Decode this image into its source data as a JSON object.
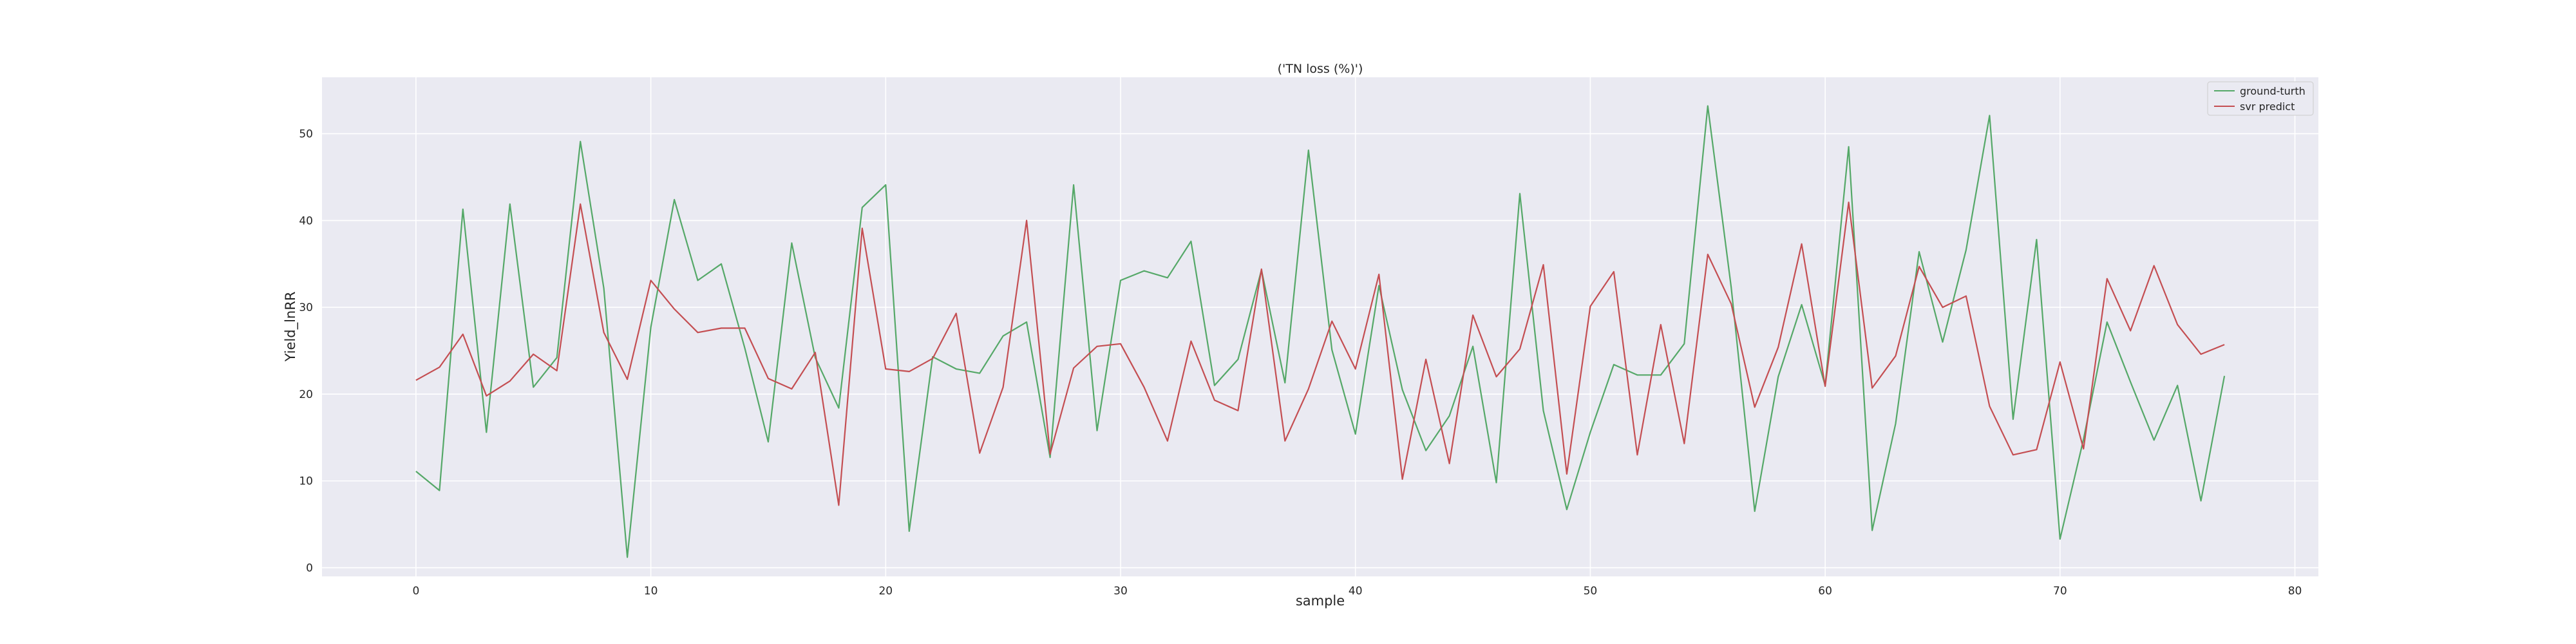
{
  "chart_data": {
    "type": "line",
    "title": "('TN loss (%)')",
    "xlabel": "sample",
    "ylabel": "Yield_lnRR",
    "xlim": [
      -4,
      81
    ],
    "ylim": [
      -1,
      56.5
    ],
    "x_ticks": [
      0,
      10,
      20,
      30,
      40,
      50,
      60,
      70,
      80
    ],
    "y_ticks": [
      0,
      10,
      20,
      30,
      40,
      50
    ],
    "grid": true,
    "legend_placement": "top-right",
    "background": "#eaeaf2",
    "series": [
      {
        "name": "ground-turth",
        "color": "#55a868",
        "values": [
          11.1,
          8.9,
          41.3,
          15.6,
          41.9,
          20.8,
          24.2,
          49.1,
          32.2,
          1.2,
          27.7,
          42.4,
          33.1,
          35.0,
          25.3,
          14.5,
          37.4,
          24.2,
          18.4,
          41.5,
          44.1,
          4.2,
          24.3,
          22.9,
          22.4,
          26.7,
          28.3,
          12.7,
          44.1,
          15.8,
          33.1,
          34.2,
          33.4,
          37.6,
          21.0,
          24.0,
          34.3,
          21.3,
          48.1,
          25.1,
          15.4,
          32.5,
          20.5,
          13.5,
          17.5,
          25.5,
          9.8,
          43.1,
          18.1,
          6.7,
          15.6,
          23.4,
          22.2,
          22.2,
          25.8,
          53.2,
          32.3,
          6.5,
          22.0,
          30.3,
          21.0,
          48.5,
          4.3,
          16.6,
          36.4,
          26.0,
          36.6,
          52.1,
          17.1,
          37.8,
          3.3,
          14.8,
          28.3,
          21.4,
          14.7,
          21.0,
          7.7,
          22.1
        ]
      },
      {
        "name": "svr predict",
        "color": "#c44e52",
        "values": [
          21.6,
          23.1,
          26.9,
          19.8,
          21.5,
          24.6,
          22.7,
          41.9,
          27.1,
          21.7,
          33.1,
          29.8,
          27.1,
          27.6,
          27.6,
          21.8,
          20.6,
          24.8,
          7.2,
          39.1,
          22.9,
          22.6,
          24.1,
          29.3,
          13.2,
          20.8,
          40.0,
          13.1,
          23.0,
          25.5,
          25.8,
          20.8,
          14.6,
          26.1,
          19.3,
          18.1,
          34.4,
          14.6,
          20.6,
          28.4,
          22.9,
          33.8,
          10.2,
          24.0,
          12.0,
          29.1,
          22.0,
          25.2,
          34.9,
          10.8,
          30.1,
          34.1,
          13.0,
          28.0,
          14.3,
          36.1,
          30.4,
          18.5,
          25.4,
          37.3,
          20.9,
          42.1,
          20.7,
          24.4,
          34.7,
          30.0,
          31.3,
          18.6,
          13.0,
          13.6,
          23.7,
          13.7,
          33.3,
          27.3,
          34.8,
          28.0,
          24.6,
          25.7
        ]
      }
    ]
  }
}
